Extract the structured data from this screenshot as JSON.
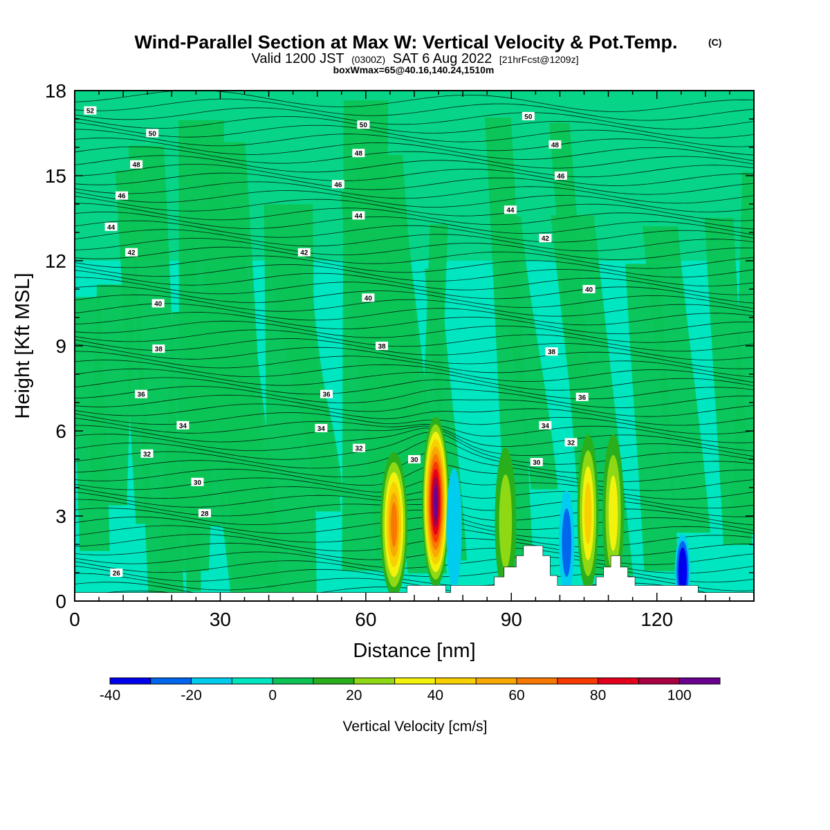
{
  "chart_data": {
    "type": "heatmap",
    "title": "Wind-Parallel Section at Max W: Vertical Velocity & Pot.Temp.",
    "title_mark": "(C)",
    "subtitle": {
      "valid_prefix": "Valid 1200 JST",
      "utc": "(0300Z)",
      "date": "SAT 6 Aug 2022",
      "forecast": "[21hrFcst@1209z]"
    },
    "box_info": "boxWmax=65@40.16,140.24,1510m",
    "xlabel": "Distance [nm]",
    "ylabel": "Height [Kft MSL]",
    "xlim": [
      0,
      140
    ],
    "ylim": [
      0,
      18
    ],
    "x_ticks": [
      0,
      30,
      60,
      90,
      120
    ],
    "y_ticks": [
      0,
      3,
      6,
      9,
      12,
      15,
      18
    ],
    "colorbar": {
      "title": "Vertical Velocity [cm/s]",
      "bins": [
        -40,
        -30,
        -20,
        -10,
        0,
        10,
        20,
        30,
        40,
        50,
        60,
        70,
        80,
        90,
        100,
        110
      ],
      "tick_labels": [
        -40,
        -20,
        0,
        20,
        40,
        60,
        80,
        100
      ],
      "colors": [
        "#0000ee",
        "#0066ee",
        "#00ccee",
        "#00e6c0",
        "#0cc456",
        "#2aaf1c",
        "#8fd814",
        "#f2f20c",
        "#f8d000",
        "#f8a800",
        "#f87800",
        "#f83a00",
        "#e4001c",
        "#a80040",
        "#6a0090"
      ]
    },
    "background_color": "#00e6c0",
    "theta_contour_labels": [
      {
        "x": 3.2,
        "y": 17.3,
        "value": "52"
      },
      {
        "x": 16.0,
        "y": 16.5,
        "value": "50"
      },
      {
        "x": 59.5,
        "y": 16.8,
        "value": "50"
      },
      {
        "x": 93.5,
        "y": 17.1,
        "value": "50"
      },
      {
        "x": 12.7,
        "y": 15.4,
        "value": "48"
      },
      {
        "x": 58.5,
        "y": 15.8,
        "value": "48"
      },
      {
        "x": 99.0,
        "y": 16.1,
        "value": "48"
      },
      {
        "x": 9.7,
        "y": 14.3,
        "value": "46"
      },
      {
        "x": 54.3,
        "y": 14.7,
        "value": "46"
      },
      {
        "x": 100.2,
        "y": 15.0,
        "value": "46"
      },
      {
        "x": 7.5,
        "y": 13.2,
        "value": "44"
      },
      {
        "x": 58.5,
        "y": 13.6,
        "value": "44"
      },
      {
        "x": 89.8,
        "y": 13.8,
        "value": "44"
      },
      {
        "x": 11.7,
        "y": 12.3,
        "value": "42"
      },
      {
        "x": 47.3,
        "y": 12.3,
        "value": "42"
      },
      {
        "x": 97.0,
        "y": 12.8,
        "value": "42"
      },
      {
        "x": 17.2,
        "y": 10.5,
        "value": "40"
      },
      {
        "x": 60.5,
        "y": 10.7,
        "value": "40"
      },
      {
        "x": 106.0,
        "y": 11.0,
        "value": "40"
      },
      {
        "x": 17.3,
        "y": 8.9,
        "value": "38"
      },
      {
        "x": 63.3,
        "y": 9.0,
        "value": "38"
      },
      {
        "x": 98.3,
        "y": 8.8,
        "value": "38"
      },
      {
        "x": 13.7,
        "y": 7.3,
        "value": "36"
      },
      {
        "x": 51.9,
        "y": 7.3,
        "value": "36"
      },
      {
        "x": 104.6,
        "y": 7.2,
        "value": "36"
      },
      {
        "x": 22.3,
        "y": 6.2,
        "value": "34"
      },
      {
        "x": 50.8,
        "y": 6.1,
        "value": "34"
      },
      {
        "x": 97.0,
        "y": 6.2,
        "value": "34"
      },
      {
        "x": 14.9,
        "y": 5.2,
        "value": "32"
      },
      {
        "x": 58.6,
        "y": 5.4,
        "value": "32"
      },
      {
        "x": 102.3,
        "y": 5.6,
        "value": "32"
      },
      {
        "x": 70.0,
        "y": 5.0,
        "value": "30"
      },
      {
        "x": 25.3,
        "y": 4.2,
        "value": "30"
      },
      {
        "x": 95.2,
        "y": 4.9,
        "value": "30"
      },
      {
        "x": 26.8,
        "y": 3.1,
        "value": "28"
      },
      {
        "x": 8.6,
        "y": 1.0,
        "value": "26"
      }
    ],
    "velocity_maxima": [
      {
        "x": 65.8,
        "y": 2.6,
        "value": 60
      },
      {
        "x": 74.4,
        "y": 3.4,
        "value": 100
      },
      {
        "x": 88.8,
        "y": 2.7,
        "value": 20
      },
      {
        "x": 105.8,
        "y": 3.0,
        "value": 40
      },
      {
        "x": 111.0,
        "y": 3.0,
        "value": 30
      },
      {
        "x": 125.3,
        "y": 1.0,
        "value": -40
      },
      {
        "x": 101.4,
        "y": 2.0,
        "value": -20
      },
      {
        "x": 78.2,
        "y": 2.5,
        "value": -10
      }
    ],
    "terrain_profile": [
      [
        0,
        0.3
      ],
      [
        68.5,
        0.3
      ],
      [
        68.5,
        0.55
      ],
      [
        76.5,
        0.55
      ],
      [
        76.5,
        0.3
      ],
      [
        77.5,
        0.3
      ],
      [
        77.5,
        0.55
      ],
      [
        86.5,
        0.55
      ],
      [
        86.5,
        0.85
      ],
      [
        88.5,
        0.85
      ],
      [
        88.5,
        1.2
      ],
      [
        91.0,
        1.2
      ],
      [
        91.0,
        1.6
      ],
      [
        92.5,
        1.6
      ],
      [
        92.5,
        1.95
      ],
      [
        96.5,
        1.95
      ],
      [
        96.5,
        1.6
      ],
      [
        98.0,
        1.6
      ],
      [
        98.0,
        0.9
      ],
      [
        99.5,
        0.9
      ],
      [
        99.5,
        0.55
      ],
      [
        107.5,
        0.55
      ],
      [
        107.5,
        0.85
      ],
      [
        109.0,
        0.85
      ],
      [
        109.0,
        1.2
      ],
      [
        110.5,
        1.2
      ],
      [
        110.5,
        1.6
      ],
      [
        112.5,
        1.6
      ],
      [
        112.5,
        1.2
      ],
      [
        114.0,
        1.2
      ],
      [
        114.0,
        0.85
      ],
      [
        115.5,
        0.85
      ],
      [
        115.5,
        0.55
      ],
      [
        128.5,
        0.55
      ],
      [
        128.5,
        0.3
      ],
      [
        140,
        0.3
      ]
    ]
  }
}
